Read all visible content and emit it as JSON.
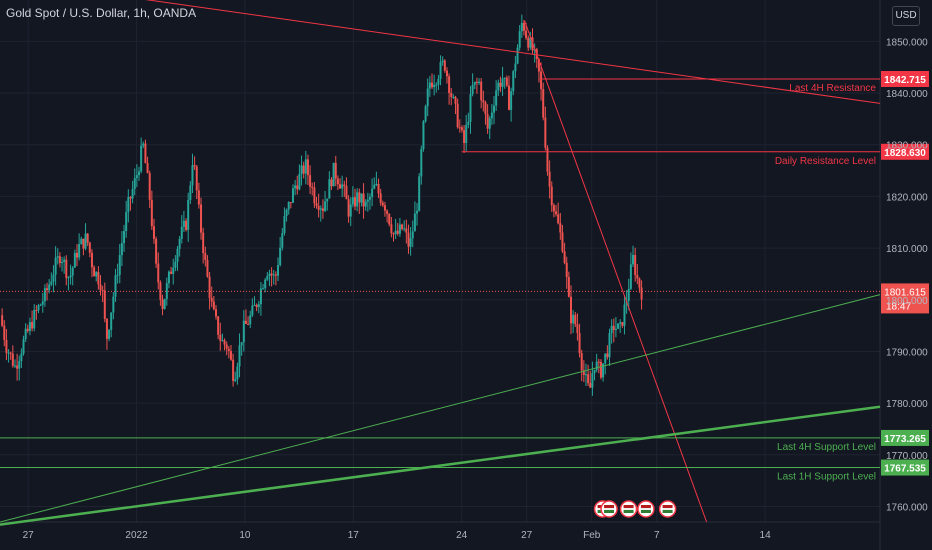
{
  "title": "Gold Spot / U.S. Dollar, 1h, OANDA",
  "currency_button": "USD",
  "colors": {
    "bg": "#131722",
    "up": "#26a69a",
    "down": "#ef5350",
    "red_line": "#f23645",
    "green_line": "#4caf50",
    "grid": "#1f2330",
    "text": "#b2b5be"
  },
  "chart_data": {
    "type": "candlestick",
    "symbol": "Gold Spot / U.S. Dollar",
    "interval": "1h",
    "source": "OANDA",
    "ylim": [
      1757,
      1858
    ],
    "y_ticks": [
      1760,
      1770,
      1780,
      1790,
      1800,
      1810,
      1820,
      1830,
      1840,
      1850
    ],
    "y_tick_labels": [
      "1760.000",
      "1770.000",
      "1780.000",
      "1790.000",
      "1800.000",
      "1810.000",
      "1820.000",
      "1830.000",
      "1840.000",
      "1850.000"
    ],
    "x_ticks": [
      {
        "label": "27",
        "t": 0
      },
      {
        "label": "2022",
        "t": 5
      },
      {
        "label": "10",
        "t": 10
      },
      {
        "label": "17",
        "t": 15
      },
      {
        "label": "24",
        "t": 20
      },
      {
        "label": "27",
        "t": 23
      },
      {
        "label": "Feb",
        "t": 26
      },
      {
        "label": "7",
        "t": 29
      },
      {
        "label": "14",
        "t": 34
      }
    ],
    "x_domain": [
      -1.3,
      39.3
    ],
    "price_path": [
      [
        -1.3,
        1797
      ],
      [
        -1.0,
        1791
      ],
      [
        -0.6,
        1787
      ],
      [
        -0.2,
        1792
      ],
      [
        0.3,
        1797
      ],
      [
        0.8,
        1801
      ],
      [
        1.2,
        1806
      ],
      [
        1.5,
        1809
      ],
      [
        1.9,
        1804
      ],
      [
        2.3,
        1810
      ],
      [
        2.7,
        1812
      ],
      [
        3.0,
        1806
      ],
      [
        3.4,
        1803
      ],
      [
        3.6,
        1792
      ],
      [
        3.9,
        1800
      ],
      [
        4.2,
        1808
      ],
      [
        4.6,
        1818
      ],
      [
        5.0,
        1824
      ],
      [
        5.3,
        1830
      ],
      [
        5.6,
        1820
      ],
      [
        5.9,
        1806
      ],
      [
        6.2,
        1799
      ],
      [
        6.6,
        1806
      ],
      [
        7.0,
        1812
      ],
      [
        7.3,
        1815
      ],
      [
        7.6,
        1828
      ],
      [
        7.9,
        1816
      ],
      [
        8.2,
        1806
      ],
      [
        8.5,
        1798
      ],
      [
        8.9,
        1792
      ],
      [
        9.2,
        1791
      ],
      [
        9.5,
        1785
      ],
      [
        9.9,
        1794
      ],
      [
        10.3,
        1797
      ],
      [
        10.6,
        1800
      ],
      [
        11.0,
        1806
      ],
      [
        11.4,
        1804
      ],
      [
        11.8,
        1815
      ],
      [
        12.3,
        1822
      ],
      [
        12.8,
        1826
      ],
      [
        13.2,
        1820
      ],
      [
        13.6,
        1818
      ],
      [
        14.1,
        1825
      ],
      [
        14.5,
        1822
      ],
      [
        14.8,
        1817
      ],
      [
        15.2,
        1820
      ],
      [
        15.6,
        1818
      ],
      [
        16.0,
        1822
      ],
      [
        16.5,
        1818
      ],
      [
        16.9,
        1812
      ],
      [
        17.3,
        1814
      ],
      [
        17.6,
        1810
      ],
      [
        18.0,
        1820
      ],
      [
        18.2,
        1832
      ],
      [
        18.5,
        1842
      ],
      [
        18.8,
        1843
      ],
      [
        19.2,
        1846
      ],
      [
        19.5,
        1840
      ],
      [
        19.8,
        1835
      ],
      [
        20.1,
        1830
      ],
      [
        20.5,
        1841
      ],
      [
        20.8,
        1842
      ],
      [
        21.2,
        1833
      ],
      [
        21.6,
        1841
      ],
      [
        21.9,
        1843
      ],
      [
        22.2,
        1838
      ],
      [
        22.5,
        1847
      ],
      [
        22.8,
        1854
      ],
      [
        23.0,
        1851
      ],
      [
        23.3,
        1848
      ],
      [
        23.6,
        1843
      ],
      [
        23.8,
        1834
      ],
      [
        24.0,
        1823
      ],
      [
        24.3,
        1817
      ],
      [
        24.7,
        1810
      ],
      [
        25.0,
        1797
      ],
      [
        25.3,
        1795
      ],
      [
        25.6,
        1786
      ],
      [
        25.9,
        1782
      ],
      [
        26.1,
        1788
      ],
      [
        26.4,
        1786
      ],
      [
        26.7,
        1790
      ],
      [
        27.0,
        1795
      ],
      [
        27.3,
        1794
      ],
      [
        27.6,
        1800
      ],
      [
        27.9,
        1808
      ],
      [
        28.1,
        1804
      ],
      [
        28.3,
        1801.615
      ]
    ],
    "last_price": 1801.615,
    "last_price_label": "1801.615",
    "countdown_label": "18:47",
    "levels": [
      {
        "name": "Last 4H Resistance",
        "price": 1842.715,
        "label": "1842.715",
        "x_from": 23.6,
        "color": "#f23645"
      },
      {
        "name": "Daily Resistance Level",
        "price": 1828.63,
        "label": "1828.630",
        "x_from": 20.0,
        "color": "#f23645"
      },
      {
        "name": "Last 4H Support Level",
        "price": 1773.265,
        "label": "1773.265",
        "x_from": -1.3,
        "color": "#4caf50"
      },
      {
        "name": "Last 1H Support Level",
        "price": 1767.535,
        "label": "1767.535",
        "x_from": -1.3,
        "color": "#4caf50"
      }
    ],
    "trendlines": [
      {
        "points": [
          [
            0.5,
            1861
          ],
          [
            39.3,
            1838
          ]
        ],
        "color": "#f23645",
        "width": 1
      },
      {
        "points": [
          [
            22.9,
            1854
          ],
          [
            31.3,
            1757
          ]
        ],
        "color": "#f23645",
        "width": 1
      },
      {
        "points": [
          [
            -1.3,
            1757
          ],
          [
            39.3,
            1801
          ]
        ],
        "color": "#4caf50",
        "width": 1
      },
      {
        "points": [
          [
            -1.3,
            1756.5
          ],
          [
            39.3,
            1779.3
          ]
        ],
        "color": "#4caf50",
        "width": 2.5
      }
    ],
    "event_markers_t": [
      26.5,
      26.8,
      27.7,
      28.5,
      29.5
    ]
  }
}
